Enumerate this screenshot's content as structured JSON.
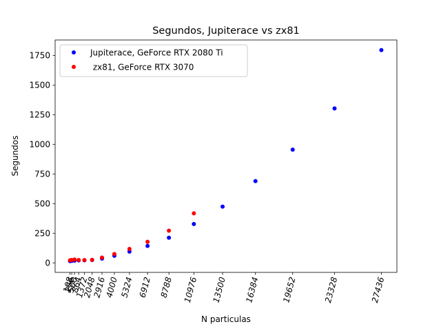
{
  "chart_data": {
    "type": "scatter",
    "title": "Segundos, Jupiterace vs zx81",
    "xlabel": "N particulas",
    "ylabel": "Segundos",
    "xlim": [
      -1200,
      28800
    ],
    "ylim": [
      -80,
      1880
    ],
    "x_ticks": [
      108,
      256,
      500,
      864,
      1372,
      2048,
      2916,
      4000,
      5324,
      6912,
      8788,
      10976,
      13500,
      16384,
      19652,
      23328,
      27436
    ],
    "y_ticks": [
      0,
      250,
      500,
      750,
      1000,
      1250,
      1500,
      1750
    ],
    "y_tick_labels": [
      "0",
      "250",
      "500",
      "750",
      "1000",
      "1250",
      "1500",
      "1750"
    ],
    "legend_position": "upper-left",
    "grid": false,
    "series": [
      {
        "name": "Jupiterace, GeForce RTX 2080 Ti",
        "color": "#0000ff",
        "points": [
          {
            "x": 108,
            "y": 15
          },
          {
            "x": 256,
            "y": 17
          },
          {
            "x": 500,
            "y": 19
          },
          {
            "x": 864,
            "y": 21
          },
          {
            "x": 1372,
            "y": 22
          },
          {
            "x": 2048,
            "y": 24
          },
          {
            "x": 2916,
            "y": 36
          },
          {
            "x": 4000,
            "y": 60
          },
          {
            "x": 5324,
            "y": 95
          },
          {
            "x": 6912,
            "y": 143
          },
          {
            "x": 8788,
            "y": 212
          },
          {
            "x": 10976,
            "y": 328
          },
          {
            "x": 13500,
            "y": 475
          },
          {
            "x": 16384,
            "y": 690
          },
          {
            "x": 19652,
            "y": 955
          },
          {
            "x": 23328,
            "y": 1303
          },
          {
            "x": 27436,
            "y": 1795
          }
        ]
      },
      {
        "name": " zx81, GeForce RTX 3070",
        "color": "#ff0000",
        "points": [
          {
            "x": 108,
            "y": 22
          },
          {
            "x": 256,
            "y": 25
          },
          {
            "x": 500,
            "y": 28
          },
          {
            "x": 864,
            "y": 25
          },
          {
            "x": 1372,
            "y": 24
          },
          {
            "x": 2048,
            "y": 26
          },
          {
            "x": 2916,
            "y": 45
          },
          {
            "x": 4000,
            "y": 75
          },
          {
            "x": 5324,
            "y": 118
          },
          {
            "x": 6912,
            "y": 178
          },
          {
            "x": 8788,
            "y": 272
          },
          {
            "x": 10976,
            "y": 418
          }
        ]
      }
    ]
  }
}
